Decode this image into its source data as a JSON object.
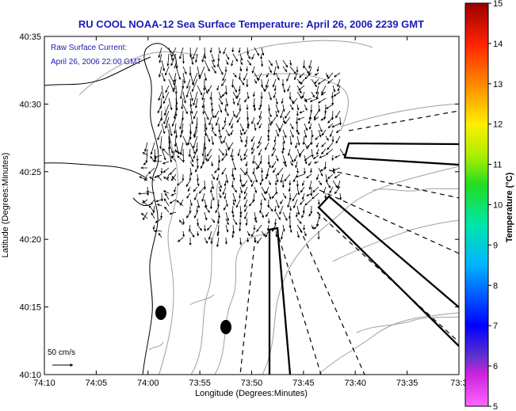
{
  "title": "RU COOL  NOAA-12  Sea Surface Temperature:  April 26, 2006 2239 GMT",
  "annotation": {
    "line1": "Raw Surface Current:",
    "line2": "April 26, 2006 22:00 GMT"
  },
  "scale_label": "50 cm/s",
  "colorbar": {
    "label": "Temperature (°C)",
    "ticks": [
      "5",
      "6",
      "7",
      "8",
      "9",
      "10",
      "11",
      "12",
      "13",
      "14",
      "15"
    ]
  },
  "colors": {
    "title": "#1c1cb4",
    "coast": "#000000",
    "contour": "#a0a0a0",
    "vector": "#000000"
  },
  "chart_data": {
    "type": "map",
    "title": "RU COOL  NOAA-12  Sea Surface Temperature:  April 26, 2006 2239 GMT",
    "xlabel": "Longitude (Degrees:Minutes)",
    "ylabel": "Latitude (Degrees:Minutes)",
    "x_ticks": [
      "74:10",
      "74:05",
      "74:00",
      "73:55",
      "73:50",
      "73:45",
      "73:40",
      "73:35",
      "73:3"
    ],
    "y_ticks": [
      "40:35",
      "40:30",
      "40:25",
      "40:20",
      "40:15",
      "40:10"
    ],
    "xlim_deg": [
      -74.1667,
      -73.5
    ],
    "ylim_deg": [
      40.1667,
      40.5833
    ],
    "colorbar_range_c": [
      5,
      15
    ],
    "colormap": "jet",
    "grid": false,
    "vectors": "surface current field, predominantly southward near the coast; cloud-covered SST (no temperature pixels shown)"
  }
}
